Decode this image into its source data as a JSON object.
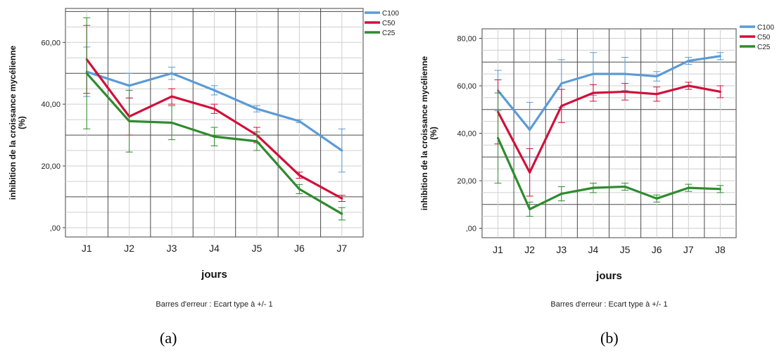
{
  "figure": {
    "panels": [
      {
        "caption": "(a)",
        "footnote": "Barres d'erreur : Ecart type à +/- 1"
      },
      {
        "caption": "(b)",
        "footnote": "Barres d'erreur : Ecart type à +/- 1"
      }
    ]
  },
  "chart_data": [
    {
      "type": "line",
      "ylabel": "inhibition de la croissance mycélienne (%)",
      "xlabel": "jours",
      "categories": [
        "J1",
        "J2",
        "J3",
        "J4",
        "J5",
        "J6",
        "J7"
      ],
      "yticks": [
        ",00",
        "20,00",
        "40,00",
        "60,00"
      ],
      "ylim": [
        -3,
        71
      ],
      "grid": true,
      "legend_position": "top-right",
      "error_bars": "standard deviation ±1",
      "series": [
        {
          "name": "C100",
          "color": "#5b9bd5",
          "values": [
            50.5,
            46.0,
            50.0,
            44.5,
            38.5,
            34.5,
            25.0
          ],
          "error": [
            8.0,
            4.0,
            2.0,
            1.5,
            1.0,
            0.5,
            7.0
          ]
        },
        {
          "name": "C50",
          "color": "#d0103a",
          "values": [
            54.5,
            36.0,
            42.5,
            38.5,
            30.0,
            17.0,
            9.5
          ],
          "error": [
            11.0,
            6.0,
            2.5,
            1.5,
            2.5,
            1.0,
            1.0
          ]
        },
        {
          "name": "C25",
          "color": "#2e8b2e",
          "values": [
            50.0,
            34.5,
            34.0,
            29.5,
            28.0,
            12.5,
            4.5
          ],
          "error": [
            18.0,
            10.0,
            5.5,
            3.0,
            3.0,
            1.5,
            2.0
          ]
        }
      ]
    },
    {
      "type": "line",
      "ylabel": "inhibition de la croissance mycélienne (%)",
      "xlabel": "jours",
      "categories": [
        "J1",
        "J2",
        "J3",
        "J4",
        "J5",
        "J6",
        "J7",
        "J8"
      ],
      "yticks": [
        ",00",
        "20,00",
        "40,00",
        "60,00",
        "80,00"
      ],
      "ylim": [
        -4,
        84
      ],
      "grid": true,
      "legend_position": "top-right",
      "error_bars": "standard deviation ±1",
      "series": [
        {
          "name": "C100",
          "color": "#5b9bd5",
          "values": [
            58.0,
            41.5,
            61.0,
            65.0,
            65.0,
            64.0,
            70.5,
            72.5
          ],
          "error": [
            8.5,
            11.5,
            10.0,
            9.0,
            7.0,
            2.0,
            1.5,
            1.5
          ]
        },
        {
          "name": "C50",
          "color": "#d0103a",
          "values": [
            49.0,
            23.5,
            51.5,
            57.0,
            57.5,
            56.5,
            60.0,
            57.5
          ],
          "error": [
            13.5,
            10.0,
            7.0,
            3.5,
            3.5,
            3.0,
            1.5,
            2.5
          ]
        },
        {
          "name": "C25",
          "color": "#2e8b2e",
          "values": [
            38.0,
            8.0,
            14.5,
            17.0,
            17.5,
            12.5,
            17.0,
            16.5
          ],
          "error": [
            19.0,
            3.0,
            3.0,
            2.0,
            1.5,
            1.5,
            1.5,
            1.5
          ]
        }
      ]
    }
  ]
}
